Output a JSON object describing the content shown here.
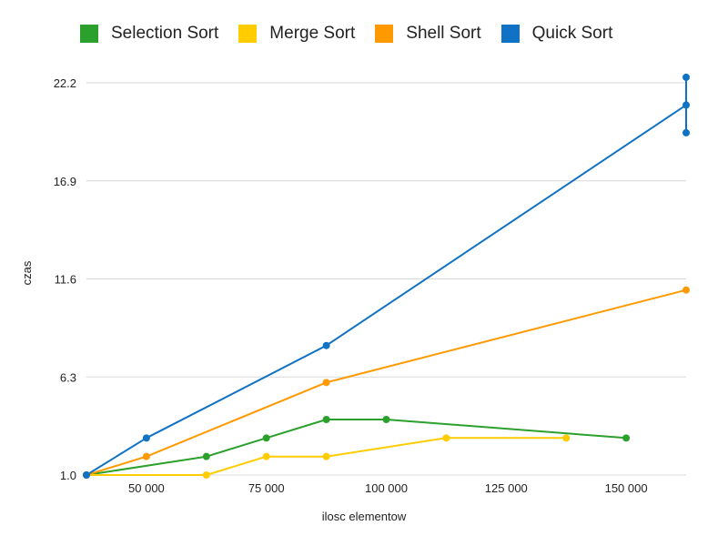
{
  "chart_data": {
    "type": "line",
    "xlabel": "ilosc elementow",
    "ylabel": "czas",
    "xlim": [
      37500,
      162500
    ],
    "ylim": [
      1.0,
      22.2
    ],
    "x_ticks": [
      {
        "value": 50000,
        "label": "50 000"
      },
      {
        "value": 75000,
        "label": "75 000"
      },
      {
        "value": 100000,
        "label": "100 000"
      },
      {
        "value": 125000,
        "label": "125 000"
      },
      {
        "value": 150000,
        "label": "150 000"
      }
    ],
    "y_ticks": [
      {
        "value": 1.0,
        "label": "1.0"
      },
      {
        "value": 6.3,
        "label": "6.3"
      },
      {
        "value": 11.6,
        "label": "11.6"
      },
      {
        "value": 16.9,
        "label": "16.9"
      },
      {
        "value": 22.2,
        "label": "22.2"
      }
    ],
    "grid": "horizontal",
    "legend_position": "top",
    "series": [
      {
        "name": "Selection Sort",
        "color": "#2ca02c",
        "points": [
          [
            37500,
            1.0
          ],
          [
            62500,
            2.0
          ],
          [
            75000,
            3.0
          ],
          [
            87500,
            4.0
          ],
          [
            100000,
            4.0
          ],
          [
            150000,
            3.0
          ]
        ]
      },
      {
        "name": "Merge Sort",
        "color": "#ffcc00",
        "points": [
          [
            37500,
            1.0
          ],
          [
            62500,
            1.0
          ],
          [
            75000,
            2.0
          ],
          [
            87500,
            2.0
          ],
          [
            112500,
            3.0
          ],
          [
            137500,
            3.0
          ]
        ]
      },
      {
        "name": "Shell Sort",
        "color": "#ff9900",
        "points": [
          [
            37500,
            1.0
          ],
          [
            50000,
            2.0
          ],
          [
            87500,
            6.0
          ],
          [
            162500,
            11.0
          ]
        ]
      },
      {
        "name": "Quick Sort",
        "color": "#0f72c4",
        "points": [
          [
            37500,
            1.0
          ],
          [
            50000,
            3.0
          ],
          [
            87500,
            8.0
          ],
          [
            162500,
            21.0
          ],
          [
            162500,
            19.5
          ],
          [
            162500,
            22.5
          ]
        ]
      }
    ]
  }
}
